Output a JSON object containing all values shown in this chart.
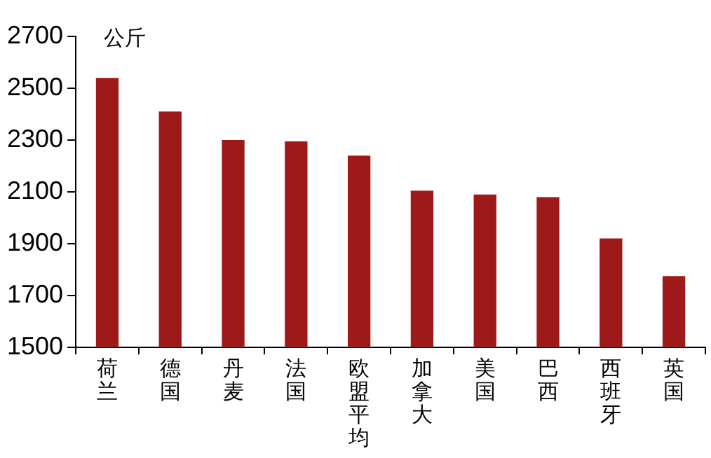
{
  "chart_data": {
    "type": "bar",
    "ylabel": "公斤",
    "categories": [
      "荷兰",
      "德国",
      "丹麦",
      "法国",
      "欧盟平均",
      "加拿大",
      "美国",
      "巴西",
      "西班牙",
      "英国"
    ],
    "values": [
      2540,
      2410,
      2300,
      2295,
      2240,
      2105,
      2090,
      2080,
      1920,
      1775
    ],
    "color": "#9e1a1a",
    "ylim": [
      1500,
      2700
    ],
    "yticks": [
      1500,
      1700,
      1900,
      2100,
      2300,
      2500,
      2700
    ],
    "grid": false,
    "legend": false
  }
}
